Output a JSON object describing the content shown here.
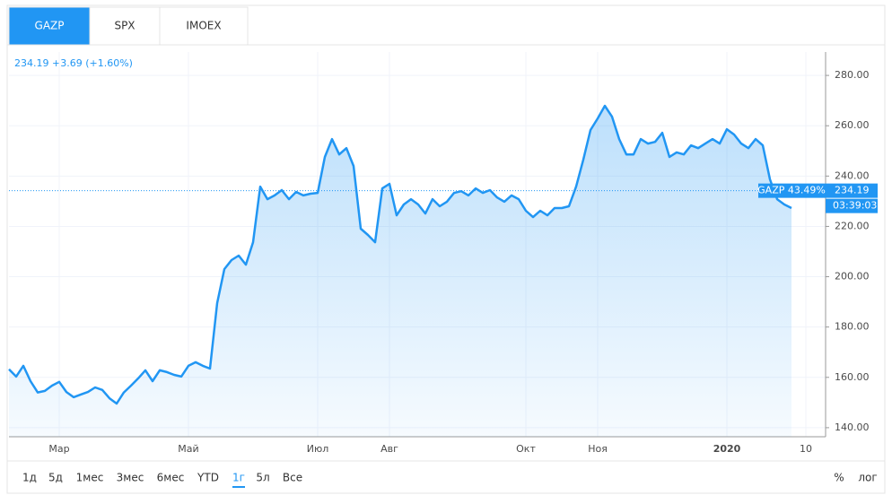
{
  "tabs": [
    "GAZP",
    "SPX",
    "IMOEX"
  ],
  "selected_tab": 0,
  "quote": "234.19 +3.69 (+1.60%)",
  "ranges": [
    "1д",
    "5д",
    "1мес",
    "3мес",
    "6мес",
    "YTD",
    "1г",
    "5л",
    "Все"
  ],
  "selected_range": 6,
  "scale_buttons": [
    "%",
    "лог"
  ],
  "chart_data": {
    "type": "area",
    "categories": [
      null,
      null,
      null,
      null,
      null,
      null,
      null,
      "Мар",
      null,
      null,
      null,
      null,
      null,
      null,
      null,
      null,
      null,
      null,
      null,
      null,
      null,
      null,
      null,
      null,
      null,
      "Май",
      null,
      null,
      null,
      null,
      null,
      null,
      null,
      null,
      null,
      null,
      null,
      null,
      null,
      null,
      null,
      null,
      null,
      "Июл",
      null,
      null,
      null,
      null,
      null,
      null,
      null,
      null,
      null,
      "Авг",
      null,
      null,
      null,
      null,
      null,
      null,
      null,
      null,
      null,
      null,
      null,
      null,
      null,
      null,
      null,
      null,
      null,
      null,
      "Окт",
      null,
      null,
      null,
      null,
      null,
      null,
      null,
      null,
      null,
      "Ноя",
      null,
      null,
      null,
      null,
      null,
      null,
      null,
      null,
      null,
      null,
      null,
      null,
      null,
      null,
      null,
      null,
      null,
      "2020",
      null,
      null,
      null,
      null,
      null,
      null,
      null,
      null,
      null,
      null,
      "10"
    ],
    "series": [
      {
        "name": "GAZP",
        "color": "#2196f3",
        "values": [
          163.2,
          160.3,
          164.6,
          158.5,
          154,
          154.6,
          156.7,
          158.2,
          154.2,
          152.1,
          153.2,
          154.2,
          156,
          155,
          151.7,
          149.6,
          154,
          156.7,
          159.6,
          162.8,
          158.5,
          162.8,
          162.1,
          161,
          160.3,
          164.6,
          166,
          164.6,
          163.5,
          189.5,
          203,
          206.6,
          208.4,
          204.8,
          213.7,
          235.8,
          230.8,
          232.3,
          234.4,
          230.8,
          233.7,
          232.3,
          233,
          233.3,
          247.6,
          254.7,
          248.6,
          251.1,
          244,
          219.1,
          216.6,
          213.7,
          235.1,
          236.9,
          224.4,
          228.7,
          230.8,
          228.7,
          225.1,
          230.8,
          228,
          229.8,
          233.3,
          234,
          232.3,
          235.1,
          233.3,
          234.4,
          231.5,
          229.8,
          232.3,
          230.8,
          226.2,
          223.7,
          226.2,
          224.4,
          227.3,
          227.3,
          228,
          235.8,
          246.5,
          258.3,
          262.9,
          267.9,
          263.6,
          254.7,
          248.6,
          248.6,
          254.7,
          252.9,
          253.6,
          257.2,
          247.6,
          249.4,
          248.6,
          252.2,
          251.1,
          252.9,
          254.7,
          252.9,
          258.6,
          256.5,
          252.9,
          251.1,
          254.7,
          252.2,
          238.7,
          230.8,
          228.7,
          227.3,
          null,
          null
        ]
      }
    ],
    "ylim": [
      136.4,
      289.3
    ],
    "yticks": [
      {
        "value": 140,
        "label": "140.00"
      },
      {
        "value": 160,
        "label": "160.00"
      },
      {
        "value": 180,
        "label": "180.00"
      },
      {
        "value": 200,
        "label": "200.00"
      },
      {
        "value": 220,
        "label": "220.00"
      },
      {
        "value": 240,
        "label": "240.00"
      },
      {
        "value": 260,
        "label": "260.00"
      },
      {
        "value": 280,
        "label": "280.00"
      }
    ],
    "grid": true,
    "price_line": 234.19,
    "price_tag": "GAZP 43.49%",
    "time_label": "03:39:03"
  }
}
